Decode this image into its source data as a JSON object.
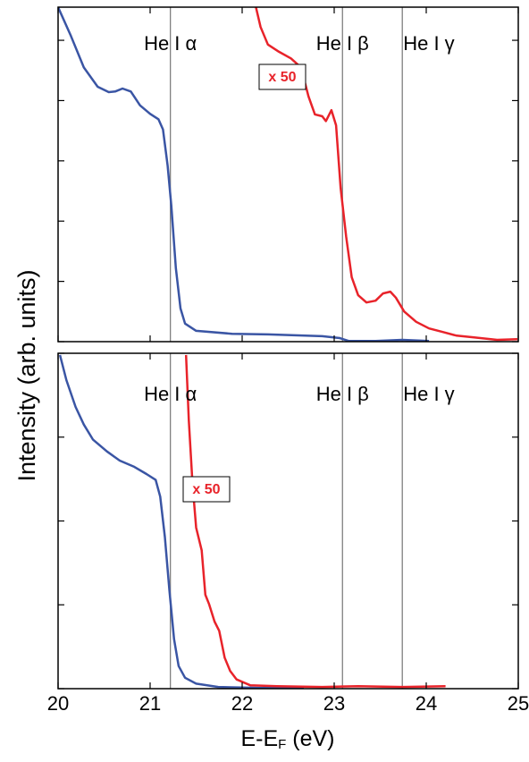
{
  "chart_data": [
    {
      "type": "line",
      "ylabel": "Intensity (arb. units)",
      "xlim": [
        20,
        25
      ],
      "xticks": [
        20,
        21,
        22,
        23,
        24,
        25
      ],
      "xtick_labels": false,
      "ylim": [
        0,
        5.55
      ],
      "yticks": [
        0,
        1,
        2,
        3,
        4,
        5
      ],
      "ytick_labels": false,
      "vlines": [
        {
          "x": 21.22,
          "label": "He I α"
        },
        {
          "x": 23.09,
          "label": "He I β"
        },
        {
          "x": 23.74,
          "label": "He I γ"
        }
      ],
      "annotation": {
        "text": "x 50",
        "color": "#e8232a"
      },
      "series": [
        {
          "color": "#3a55a4",
          "x": [
            20.0,
            20.14,
            20.28,
            20.43,
            20.55,
            20.62,
            20.7,
            20.79,
            20.89,
            21.0,
            21.09,
            21.14,
            21.19,
            21.23,
            21.28,
            21.33,
            21.38,
            21.5,
            21.89,
            22.28,
            22.87,
            23.06,
            23.16,
            23.45,
            23.74,
            24.03
          ],
          "values": [
            5.55,
            5.07,
            4.55,
            4.23,
            4.14,
            4.15,
            4.2,
            4.15,
            3.92,
            3.78,
            3.69,
            3.52,
            2.92,
            2.26,
            1.22,
            0.55,
            0.3,
            0.18,
            0.13,
            0.12,
            0.09,
            0.06,
            0.01,
            0.01,
            0.03,
            0.01
          ]
        },
        {
          "color": "#e8232a",
          "x": [
            22.15,
            22.2,
            22.28,
            22.4,
            22.53,
            22.64,
            22.72,
            22.79,
            22.87,
            22.91,
            22.97,
            23.02,
            23.07,
            23.13,
            23.19,
            23.26,
            23.35,
            23.45,
            23.53,
            23.61,
            23.67,
            23.76,
            23.89,
            24.03,
            24.18,
            24.33,
            24.52,
            24.77,
            24.99
          ],
          "values": [
            5.55,
            5.22,
            4.93,
            4.81,
            4.7,
            4.55,
            4.07,
            3.77,
            3.74,
            3.66,
            3.84,
            3.59,
            2.55,
            1.74,
            1.07,
            0.77,
            0.65,
            0.68,
            0.8,
            0.83,
            0.73,
            0.5,
            0.33,
            0.22,
            0.16,
            0.1,
            0.07,
            0.03,
            0.04
          ]
        }
      ]
    },
    {
      "type": "line",
      "xlabel": [
        "E-E",
        "F",
        " (eV)"
      ],
      "xlim": [
        20,
        25
      ],
      "xticks": [
        20,
        21,
        22,
        23,
        24,
        25
      ],
      "xtick_labels": true,
      "ylim": [
        0,
        4
      ],
      "yticks": [
        0,
        1,
        2,
        3,
        4
      ],
      "ytick_labels": false,
      "vlines": [
        {
          "x": 21.22,
          "label": "He I α"
        },
        {
          "x": 23.09,
          "label": "He I β"
        },
        {
          "x": 23.74,
          "label": "He I γ"
        }
      ],
      "annotation": {
        "text": "x 50",
        "color": "#e8232a"
      },
      "series": [
        {
          "color": "#3a55a4",
          "x": [
            20.02,
            20.09,
            20.19,
            20.28,
            20.38,
            20.53,
            20.67,
            20.82,
            20.96,
            21.06,
            21.11,
            21.16,
            21.21,
            21.26,
            21.31,
            21.38,
            21.5,
            21.74,
            22.18,
            22.67
          ],
          "values": [
            3.98,
            3.68,
            3.36,
            3.15,
            2.97,
            2.83,
            2.72,
            2.65,
            2.56,
            2.49,
            2.29,
            1.81,
            1.17,
            0.59,
            0.27,
            0.13,
            0.06,
            0.02,
            0.01,
            0.01
          ]
        },
        {
          "color": "#e8232a",
          "x": [
            21.39,
            21.42,
            21.46,
            21.5,
            21.56,
            21.6,
            21.64,
            21.7,
            21.75,
            21.81,
            21.87,
            21.94,
            22.09,
            22.38,
            22.87,
            23.26,
            23.74,
            24.21
          ],
          "values": [
            3.98,
            3.2,
            2.45,
            1.92,
            1.65,
            1.12,
            1.01,
            0.8,
            0.69,
            0.37,
            0.21,
            0.11,
            0.04,
            0.03,
            0.02,
            0.03,
            0.02,
            0.03
          ]
        }
      ]
    }
  ]
}
